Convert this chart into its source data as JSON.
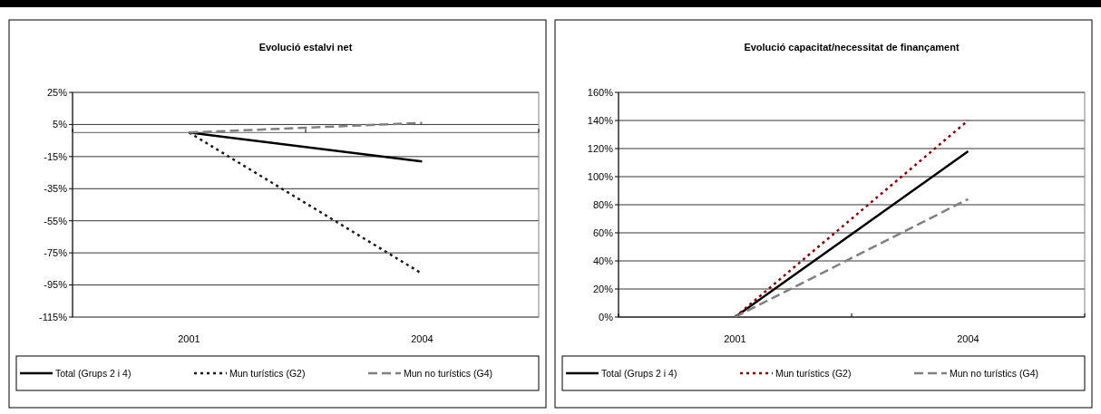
{
  "chart_data": [
    {
      "type": "line",
      "title": "Evolució estalvi net",
      "categories": [
        "2001",
        "2004"
      ],
      "ylim": [
        -115,
        25
      ],
      "yticks": [
        {
          "value": 25,
          "label": "25%"
        },
        {
          "value": 5,
          "label": "5%"
        },
        {
          "value": -15,
          "label": "-15%"
        },
        {
          "value": -35,
          "label": "-35%"
        },
        {
          "value": -55,
          "label": "-55%"
        },
        {
          "value": -75,
          "label": "-75%"
        },
        {
          "value": -95,
          "label": "-95%"
        },
        {
          "value": -115,
          "label": "-115%"
        }
      ],
      "grid": "y",
      "legend": "bottom",
      "ref_lines": [
        {
          "axis": "y",
          "value": 0,
          "color": "#808080"
        }
      ],
      "series": [
        {
          "name": "Total (Grups 2 i 4)",
          "color": "#000000",
          "line_style": "solid",
          "values": [
            0,
            -18
          ]
        },
        {
          "name": "Mun turístics (G2)",
          "color": "#1a1a1a",
          "line_style": "dotted",
          "values": [
            0,
            -88
          ]
        },
        {
          "name": "Mun no turístics (G4)",
          "color": "#808080",
          "line_style": "dashed",
          "values": [
            0,
            6
          ]
        }
      ]
    },
    {
      "type": "line",
      "title": "Evolució capacitat/necessitat de finançament",
      "categories": [
        "2001",
        "2004"
      ],
      "ylim": [
        0,
        160
      ],
      "yticks": [
        {
          "value": 0,
          "label": "0%"
        },
        {
          "value": 20,
          "label": "20%"
        },
        {
          "value": 40,
          "label": "40%"
        },
        {
          "value": 60,
          "label": "60%"
        },
        {
          "value": 80,
          "label": "80%"
        },
        {
          "value": 100,
          "label": "100%"
        },
        {
          "value": 120,
          "label": "120%"
        },
        {
          "value": 140,
          "label": "140%"
        },
        {
          "value": 160,
          "label": "160%"
        }
      ],
      "grid": "y",
      "legend": "bottom",
      "series": [
        {
          "name": "Total (Grups 2 i 4)",
          "color": "#000000",
          "line_style": "solid",
          "values": [
            0,
            118
          ]
        },
        {
          "name": "Mun turístics (G2)",
          "color": "#8b0000",
          "line_style": "dotted",
          "values": [
            0,
            140
          ]
        },
        {
          "name": "Mun no turístics (G4)",
          "color": "#808080",
          "line_style": "dashed",
          "values": [
            0,
            84
          ]
        }
      ]
    }
  ]
}
